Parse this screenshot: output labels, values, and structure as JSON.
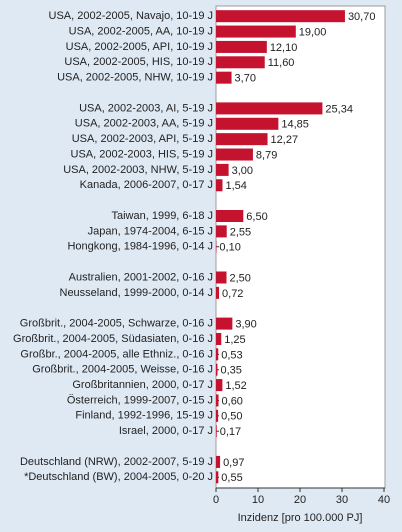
{
  "chart_data": {
    "type": "bar",
    "orientation": "horizontal",
    "x_label": "Inzidenz [pro 100.000 PJ]",
    "categories": [
      "USA, 2002-2005, Navajo, 10-19 J",
      "USA, 2002-2005, AA, 10-19 J",
      "USA, 2002-2005, API, 10-19 J",
      "USA, 2002-2005, HIS, 10-19 J",
      "USA, 2002-2005, NHW, 10-19 J",
      null,
      "USA, 2002-2003, AI, 5-19 J",
      "USA, 2002-2003, AA, 5-19 J",
      "USA, 2002-2003, API, 5-19 J",
      "USA, 2002-2003, HIS, 5-19 J",
      "USA, 2002-2003, NHW, 5-19 J",
      "Kanada, 2006-2007, 0-17 J",
      null,
      "Taiwan, 1999, 6-18 J",
      "Japan, 1974-2004, 6-15 J",
      "Hongkong, 1984-1996, 0-14 J",
      null,
      "Australien, 2001-2002, 0-16 J",
      "Neusseland, 1999-2000, 0-14 J",
      null,
      "Großbrit., 2004-2005, Schwarze, 0-16 J",
      "Großbrit., 2004-2005, Südasiaten, 0-16 J",
      "Großbr., 2004-2005, alle Ethniz., 0-16 J",
      "Großbrit., 2004-2005, Weisse, 0-16 J",
      "Großbritannien, 2000, 0-17 J",
      "Österreich, 1999-2007, 0-15 J",
      "Finland, 1992-1996, 15-19 J",
      "Israel, 2000, 0-17 J",
      null,
      "Deutschland (NRW), 2002-2007, 5-19 J",
      "*Deutschland (BW), 2004-2005, 0-20 J"
    ],
    "values": [
      30.7,
      19.0,
      12.1,
      11.6,
      3.7,
      null,
      25.34,
      14.85,
      12.27,
      8.79,
      3.0,
      1.54,
      null,
      6.5,
      2.55,
      0.1,
      null,
      2.5,
      0.72,
      null,
      3.9,
      1.25,
      0.53,
      0.35,
      1.52,
      0.6,
      0.5,
      0.17,
      null,
      0.97,
      0.55
    ],
    "value_labels": [
      "30,70",
      "19,00",
      "12,10",
      "11,60",
      "3,70",
      null,
      "25,34",
      "14,85",
      "12,27",
      "8,79",
      "3,00",
      "1,54",
      null,
      "6,50",
      "2,55",
      "0,10",
      null,
      "2,50",
      "0,72",
      null,
      "3,90",
      "1,25",
      "0,53",
      "0,35",
      "1,52",
      "0,60",
      "0,50",
      "0,17",
      null,
      "0,97",
      "0,55"
    ],
    "color": "#c4122f",
    "xlim": [
      0,
      40
    ],
    "xticks": [
      0,
      10,
      20,
      30,
      40
    ]
  }
}
